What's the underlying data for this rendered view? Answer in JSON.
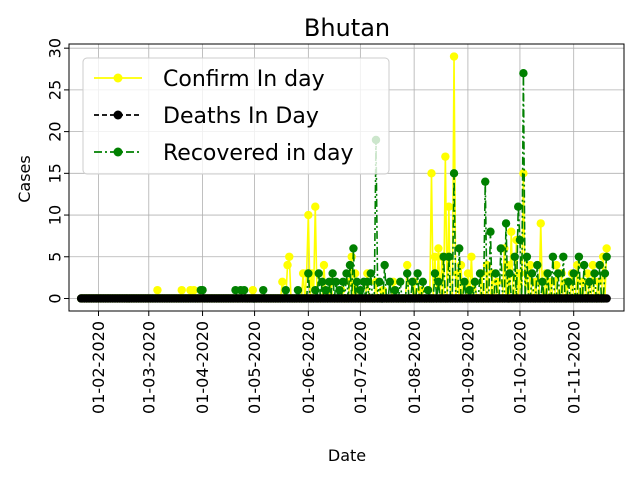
{
  "chart_data": {
    "type": "line",
    "title": "Bhutan",
    "xlabel": "Date",
    "ylabel": "Cases",
    "x_type": "date",
    "xlim": [
      "2020-01-15",
      "2020-11-30"
    ],
    "ylim": [
      -1.5,
      30.5
    ],
    "yticks": [
      0,
      5,
      10,
      15,
      20,
      25,
      30
    ],
    "xticks": [
      "2020-02-01",
      "2020-03-01",
      "2020-04-01",
      "2020-05-01",
      "2020-06-01",
      "2020-07-01",
      "2020-08-01",
      "2020-09-01",
      "2020-10-01",
      "2020-11-01"
    ],
    "xtick_labels": [
      "01-02-2020",
      "01-03-2020",
      "01-04-2020",
      "01-05-2020",
      "01-06-2020",
      "01-07-2020",
      "01-08-2020",
      "01-09-2020",
      "01-10-2020",
      "01-11-2020"
    ],
    "grid": true,
    "legend_position": "upper-left",
    "date_range": [
      "2020-01-22",
      "2020-11-20"
    ],
    "series": [
      {
        "name": "Confirm In day",
        "color": "#ffff00",
        "linestyle": "solid",
        "marker": "circle",
        "points": [
          [
            "2020-03-06",
            1
          ],
          [
            "2020-03-20",
            1
          ],
          [
            "2020-03-25",
            1
          ],
          [
            "2020-03-27",
            1
          ],
          [
            "2020-04-30",
            1
          ],
          [
            "2020-05-17",
            2
          ],
          [
            "2020-05-20",
            4
          ],
          [
            "2020-05-21",
            5
          ],
          [
            "2020-05-29",
            3
          ],
          [
            "2020-05-31",
            3
          ],
          [
            "2020-06-01",
            10
          ],
          [
            "2020-06-03",
            3
          ],
          [
            "2020-06-05",
            11
          ],
          [
            "2020-06-10",
            4
          ],
          [
            "2020-06-14",
            2
          ],
          [
            "2020-06-20",
            1
          ],
          [
            "2020-06-25",
            2
          ],
          [
            "2020-06-26",
            5
          ],
          [
            "2020-06-28",
            3
          ],
          [
            "2020-07-05",
            3
          ],
          [
            "2020-07-10",
            2
          ],
          [
            "2020-07-14",
            1
          ],
          [
            "2020-07-20",
            2
          ],
          [
            "2020-07-28",
            4
          ],
          [
            "2020-08-01",
            2
          ],
          [
            "2020-08-05",
            1
          ],
          [
            "2020-08-11",
            15
          ],
          [
            "2020-08-13",
            5
          ],
          [
            "2020-08-15",
            6
          ],
          [
            "2020-08-17",
            5
          ],
          [
            "2020-08-19",
            17
          ],
          [
            "2020-08-21",
            11
          ],
          [
            "2020-08-24",
            29
          ],
          [
            "2020-08-26",
            3
          ],
          [
            "2020-08-28",
            4
          ],
          [
            "2020-09-01",
            3
          ],
          [
            "2020-09-03",
            5
          ],
          [
            "2020-09-05",
            2
          ],
          [
            "2020-09-09",
            3
          ],
          [
            "2020-09-12",
            4
          ],
          [
            "2020-09-15",
            3
          ],
          [
            "2020-09-18",
            2
          ],
          [
            "2020-09-22",
            6
          ],
          [
            "2020-09-24",
            4
          ],
          [
            "2020-09-26",
            8
          ],
          [
            "2020-09-29",
            7
          ],
          [
            "2020-10-01",
            3
          ],
          [
            "2020-10-03",
            15
          ],
          [
            "2020-10-05",
            3
          ],
          [
            "2020-10-07",
            4
          ],
          [
            "2020-10-10",
            2
          ],
          [
            "2020-10-13",
            9
          ],
          [
            "2020-10-16",
            3
          ],
          [
            "2020-10-19",
            2
          ],
          [
            "2020-10-22",
            4
          ],
          [
            "2020-10-25",
            3
          ],
          [
            "2020-10-28",
            2
          ],
          [
            "2020-10-31",
            3
          ],
          [
            "2020-11-03",
            4
          ],
          [
            "2020-11-06",
            2
          ],
          [
            "2020-11-09",
            3
          ],
          [
            "2020-11-12",
            4
          ],
          [
            "2020-11-15",
            2
          ],
          [
            "2020-11-18",
            5
          ],
          [
            "2020-11-20",
            6
          ]
        ]
      },
      {
        "name": "Deaths In Day",
        "color": "#000000",
        "linestyle": "dashed",
        "marker": "circle",
        "points": []
      },
      {
        "name": "Recovered in day",
        "color": "#008000",
        "linestyle": "dashdot",
        "marker": "circle",
        "points": [
          [
            "2020-03-31",
            1
          ],
          [
            "2020-04-01",
            1
          ],
          [
            "2020-04-20",
            1
          ],
          [
            "2020-04-23",
            1
          ],
          [
            "2020-04-25",
            1
          ],
          [
            "2020-05-06",
            1
          ],
          [
            "2020-05-19",
            1
          ],
          [
            "2020-05-26",
            1
          ],
          [
            "2020-06-01",
            3
          ],
          [
            "2020-06-05",
            1
          ],
          [
            "2020-06-07",
            3
          ],
          [
            "2020-06-09",
            2
          ],
          [
            "2020-06-11",
            1
          ],
          [
            "2020-06-13",
            2
          ],
          [
            "2020-06-15",
            3
          ],
          [
            "2020-06-17",
            2
          ],
          [
            "2020-06-19",
            1
          ],
          [
            "2020-06-21",
            2
          ],
          [
            "2020-06-23",
            3
          ],
          [
            "2020-06-25",
            4
          ],
          [
            "2020-06-27",
            6
          ],
          [
            "2020-06-29",
            2
          ],
          [
            "2020-07-01",
            1
          ],
          [
            "2020-07-03",
            2
          ],
          [
            "2020-07-05",
            2
          ],
          [
            "2020-07-07",
            3
          ],
          [
            "2020-07-10",
            19
          ],
          [
            "2020-07-12",
            2
          ],
          [
            "2020-07-15",
            4
          ],
          [
            "2020-07-18",
            2
          ],
          [
            "2020-07-21",
            1
          ],
          [
            "2020-07-24",
            2
          ],
          [
            "2020-07-28",
            3
          ],
          [
            "2020-07-31",
            2
          ],
          [
            "2020-08-03",
            3
          ],
          [
            "2020-08-06",
            2
          ],
          [
            "2020-08-09",
            1
          ],
          [
            "2020-08-13",
            3
          ],
          [
            "2020-08-15",
            2
          ],
          [
            "2020-08-18",
            5
          ],
          [
            "2020-08-21",
            5
          ],
          [
            "2020-08-24",
            15
          ],
          [
            "2020-08-27",
            6
          ],
          [
            "2020-08-30",
            2
          ],
          [
            "2020-09-02",
            1
          ],
          [
            "2020-09-05",
            2
          ],
          [
            "2020-09-08",
            3
          ],
          [
            "2020-09-11",
            14
          ],
          [
            "2020-09-14",
            8
          ],
          [
            "2020-09-17",
            3
          ],
          [
            "2020-09-20",
            6
          ],
          [
            "2020-09-23",
            9
          ],
          [
            "2020-09-25",
            3
          ],
          [
            "2020-09-28",
            5
          ],
          [
            "2020-09-30",
            11
          ],
          [
            "2020-10-01",
            7
          ],
          [
            "2020-10-03",
            27
          ],
          [
            "2020-10-05",
            5
          ],
          [
            "2020-10-08",
            3
          ],
          [
            "2020-10-11",
            4
          ],
          [
            "2020-10-14",
            2
          ],
          [
            "2020-10-17",
            3
          ],
          [
            "2020-10-20",
            5
          ],
          [
            "2020-10-23",
            3
          ],
          [
            "2020-10-26",
            5
          ],
          [
            "2020-10-29",
            2
          ],
          [
            "2020-11-01",
            3
          ],
          [
            "2020-11-04",
            5
          ],
          [
            "2020-11-07",
            4
          ],
          [
            "2020-11-10",
            2
          ],
          [
            "2020-11-13",
            3
          ],
          [
            "2020-11-16",
            4
          ],
          [
            "2020-11-19",
            3
          ],
          [
            "2020-11-20",
            5
          ]
        ]
      }
    ]
  }
}
